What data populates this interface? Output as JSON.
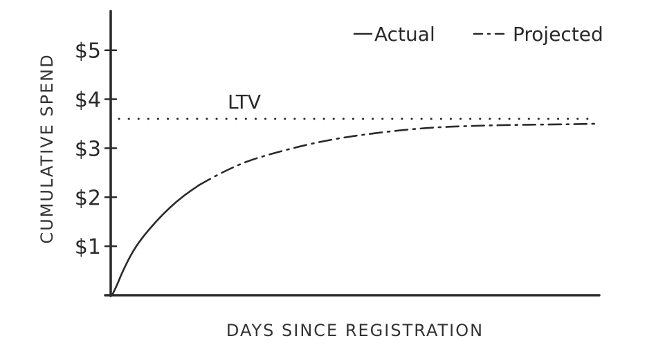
{
  "chart_data": {
    "type": "line",
    "title": "",
    "xlabel": "DAYS SINCE REGISTRATION",
    "ylabel": "CUMULATIVE SPEND",
    "ylim": [
      0,
      5.8
    ],
    "xlim": [
      0,
      100
    ],
    "y_ticks": [
      {
        "value": 1,
        "label": "$1"
      },
      {
        "value": 2,
        "label": "$2"
      },
      {
        "value": 3,
        "label": "$3"
      },
      {
        "value": 4,
        "label": "$4"
      },
      {
        "value": 5,
        "label": "$5"
      }
    ],
    "grid": false,
    "legend": {
      "placement": "top-right",
      "entries": [
        {
          "label": "Actual",
          "style": "solid"
        },
        {
          "label": "Projected",
          "style": "dash-dot"
        }
      ]
    },
    "series": [
      {
        "name": "Actual",
        "style": "solid",
        "x": [
          0,
          1,
          2,
          4,
          6,
          9,
          12,
          15,
          18
        ],
        "y": [
          0,
          0.2,
          0.45,
          0.85,
          1.15,
          1.5,
          1.8,
          2.05,
          2.25
        ]
      },
      {
        "name": "Projected",
        "style": "dash-dot",
        "x": [
          18,
          25,
          35,
          45,
          55,
          65,
          75,
          85,
          95,
          100
        ],
        "y": [
          2.25,
          2.65,
          2.95,
          3.18,
          3.32,
          3.42,
          3.46,
          3.48,
          3.49,
          3.5
        ]
      }
    ],
    "reference_lines": [
      {
        "label": "LTV",
        "y": 3.6,
        "style": "dotted"
      }
    ]
  }
}
